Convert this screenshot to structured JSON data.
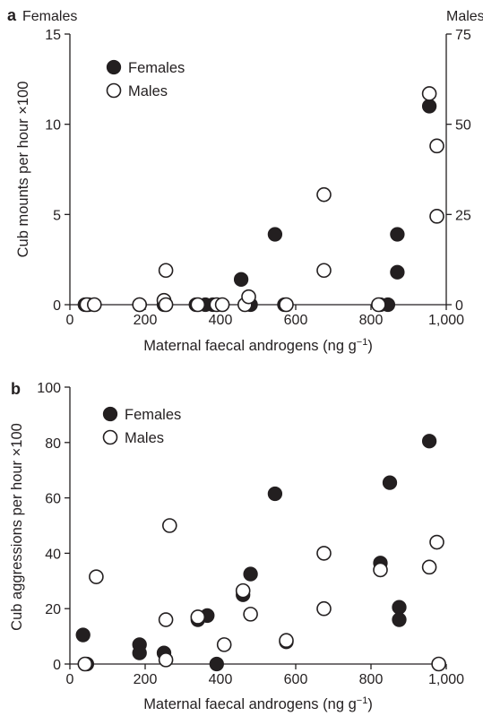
{
  "chart_data": [
    {
      "type": "scatter",
      "panel_label": "a",
      "left_title": "Females",
      "right_title": "Males",
      "xlabel": "Maternal faecal androgens (ng g",
      "xlabel_sup": "−1",
      "xlabel_close": ")",
      "ylabel": "Cub mounts per hour ×100",
      "xlim": [
        0,
        1000
      ],
      "ylim": [
        0,
        15
      ],
      "y2lim": [
        0,
        75
      ],
      "xticks": [
        0,
        200,
        400,
        600,
        800,
        1000
      ],
      "xtick_labels": [
        "0",
        "200",
        "400",
        "600",
        "800",
        "1,000"
      ],
      "yticks": [
        0,
        5,
        10,
        15
      ],
      "ytick_labels": [
        "0",
        "5",
        "10",
        "15"
      ],
      "y2ticks": [
        0,
        25,
        50,
        75
      ],
      "y2tick_labels": [
        "0",
        "25",
        "50",
        "75"
      ],
      "legend_position": "top-left",
      "series": [
        {
          "name": "Females",
          "marker": "filled",
          "axis": "left",
          "points": [
            [
              40,
              0
            ],
            [
              50,
              0
            ],
            [
              185,
              0
            ],
            [
              250,
              0
            ],
            [
              335,
              0
            ],
            [
              360,
              0
            ],
            [
              380,
              0
            ],
            [
              455,
              1.4
            ],
            [
              480,
              0
            ],
            [
              545,
              3.9
            ],
            [
              570,
              0
            ],
            [
              825,
              0
            ],
            [
              845,
              0
            ],
            [
              870,
              1.8
            ],
            [
              870,
              3.9
            ],
            [
              955,
              11
            ]
          ]
        },
        {
          "name": "Males",
          "marker": "open",
          "axis": "right",
          "points": [
            [
              45,
              0
            ],
            [
              65,
              0
            ],
            [
              185,
              0
            ],
            [
              250,
              1.2
            ],
            [
              255,
              0
            ],
            [
              255,
              9.5
            ],
            [
              340,
              0
            ],
            [
              390,
              0
            ],
            [
              405,
              0
            ],
            [
              465,
              0
            ],
            [
              475,
              2.2
            ],
            [
              575,
              0
            ],
            [
              675,
              30.5
            ],
            [
              675,
              9.5
            ],
            [
              820,
              0
            ],
            [
              955,
              58.5
            ],
            [
              975,
              44
            ],
            [
              975,
              24.5
            ]
          ]
        }
      ]
    },
    {
      "type": "scatter",
      "panel_label": "b",
      "xlabel": "Maternal faecal androgens (ng g",
      "xlabel_sup": "−1",
      "xlabel_close": ")",
      "ylabel": "Cub aggressions per hour ×100",
      "xlim": [
        0,
        1000
      ],
      "ylim": [
        0,
        100
      ],
      "xticks": [
        0,
        200,
        400,
        600,
        800,
        1000
      ],
      "xtick_labels": [
        "0",
        "200",
        "400",
        "600",
        "800",
        "1,000"
      ],
      "yticks": [
        0,
        20,
        40,
        60,
        80,
        100
      ],
      "ytick_labels": [
        "0",
        "20",
        "40",
        "60",
        "80",
        "100"
      ],
      "legend_position": "top-left",
      "series": [
        {
          "name": "Females",
          "marker": "filled",
          "points": [
            [
              35,
              10.5
            ],
            [
              45,
              0
            ],
            [
              185,
              7
            ],
            [
              185,
              4
            ],
            [
              250,
              4
            ],
            [
              340,
              16
            ],
            [
              365,
              17.5
            ],
            [
              390,
              0
            ],
            [
              460,
              25
            ],
            [
              480,
              32.5
            ],
            [
              545,
              61.5
            ],
            [
              575,
              8
            ],
            [
              825,
              36.5
            ],
            [
              850,
              65.5
            ],
            [
              875,
              20.5
            ],
            [
              875,
              16
            ],
            [
              955,
              80.5
            ]
          ]
        },
        {
          "name": "Males",
          "marker": "open",
          "points": [
            [
              40,
              0
            ],
            [
              70,
              31.5
            ],
            [
              255,
              1.5
            ],
            [
              255,
              16
            ],
            [
              265,
              50
            ],
            [
              340,
              17
            ],
            [
              410,
              7
            ],
            [
              460,
              26.5
            ],
            [
              480,
              18
            ],
            [
              575,
              8.5
            ],
            [
              675,
              40
            ],
            [
              675,
              20
            ],
            [
              825,
              34
            ],
            [
              955,
              35
            ],
            [
              975,
              44
            ],
            [
              980,
              0
            ]
          ]
        }
      ]
    }
  ]
}
